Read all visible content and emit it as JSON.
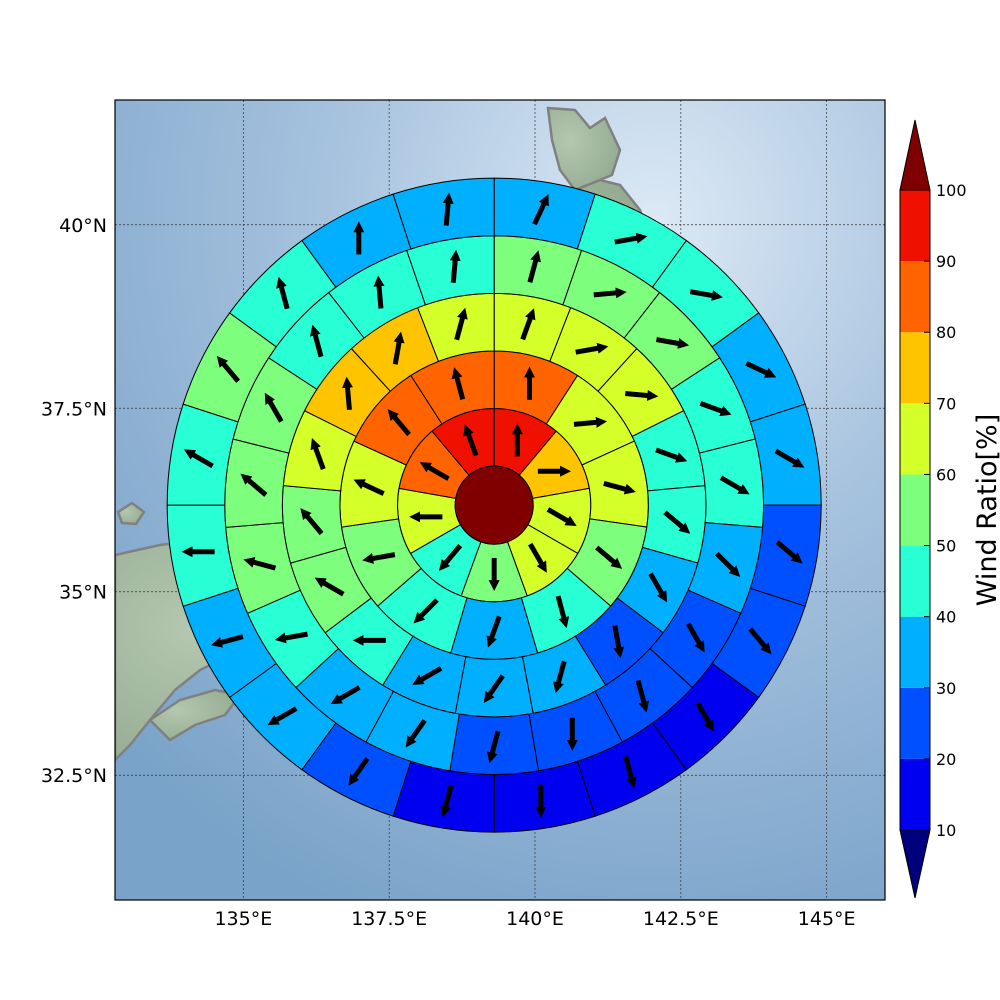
{
  "map": {
    "lon_range": [
      132.8,
      146.0
    ],
    "lat_range": [
      30.8,
      41.7
    ],
    "center": {
      "lon": 139.3,
      "lat": 36.18
    },
    "x_ticks": [
      {
        "value": 135.0,
        "label": "135°E"
      },
      {
        "value": 137.5,
        "label": "137.5°E"
      },
      {
        "value": 140.0,
        "label": "140°E"
      },
      {
        "value": 142.5,
        "label": "142.5°E"
      },
      {
        "value": 145.0,
        "label": "145°E"
      }
    ],
    "y_ticks": [
      {
        "value": 40.0,
        "label": "40°N"
      },
      {
        "value": 37.5,
        "label": "37.5°N"
      },
      {
        "value": 35.0,
        "label": "35°N"
      },
      {
        "value": 32.5,
        "label": "32.5°N"
      }
    ],
    "land_color": "#9cb09a",
    "coast_color": "#808080",
    "ocean_color": "#8fb2d3"
  },
  "colorbar": {
    "label": "Wind Ratio[%]",
    "ticks": [
      10,
      20,
      30,
      40,
      50,
      60,
      70,
      80,
      90,
      100
    ],
    "colors": [
      "#0000f0",
      "#0050ff",
      "#00b0ff",
      "#28ffd4",
      "#7dff7d",
      "#d4ff28",
      "#ffc400",
      "#ff6400",
      "#f01000"
    ],
    "under_color": "#00007f",
    "over_color": "#7f0000",
    "center_color": "#800000"
  },
  "chart_data": {
    "type": "heatmap",
    "description_units": "wind ratio in percent per polar cell; arrow direction in compass degrees",
    "center_value": 100,
    "rings": [
      {
        "ring": 1,
        "values": [
          90,
          70,
          60,
          60,
          50,
          40,
          60,
          80,
          90
        ],
        "arrow_dirs": [
          0,
          90,
          120,
          150,
          180,
          220,
          270,
          300,
          340
        ]
      },
      {
        "ring": 2,
        "values": [
          80,
          60,
          60,
          50,
          40,
          30,
          40,
          50,
          60,
          80,
          80
        ],
        "arrow_dirs": [
          0,
          85,
          105,
          130,
          165,
          200,
          225,
          260,
          295,
          320,
          345
        ]
      },
      {
        "ring": 3,
        "values": [
          60,
          60,
          60,
          40,
          40,
          30,
          20,
          30,
          30,
          30,
          40,
          50,
          50,
          60,
          70,
          70,
          60
        ],
        "arrow_dirs": [
          20,
          80,
          95,
          110,
          130,
          150,
          170,
          195,
          215,
          240,
          270,
          300,
          320,
          340,
          355,
          10,
          15
        ]
      },
      {
        "ring": 4,
        "values": [
          50,
          50,
          50,
          40,
          40,
          30,
          20,
          20,
          20,
          20,
          30,
          30,
          40,
          50,
          50,
          50,
          40,
          40,
          40
        ],
        "arrow_dirs": [
          15,
          85,
          100,
          110,
          120,
          135,
          150,
          165,
          180,
          195,
          215,
          240,
          260,
          285,
          310,
          330,
          345,
          355,
          5
        ]
      },
      {
        "ring": 5,
        "values": [
          30,
          40,
          40,
          30,
          30,
          20,
          20,
          10,
          10,
          10,
          10,
          20,
          30,
          30,
          40,
          40,
          50,
          40,
          30,
          30
        ],
        "arrow_dirs": [
          25,
          80,
          100,
          115,
          120,
          130,
          140,
          150,
          165,
          180,
          195,
          215,
          240,
          255,
          270,
          300,
          320,
          345,
          0,
          5
        ]
      }
    ]
  }
}
